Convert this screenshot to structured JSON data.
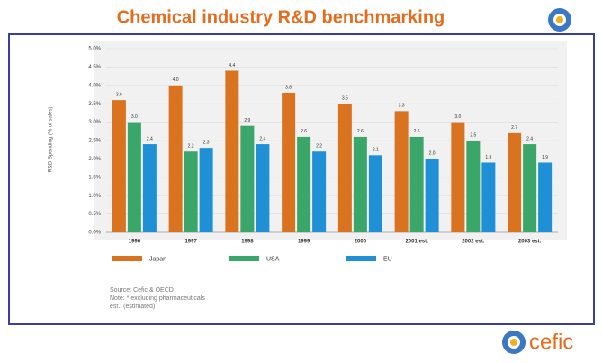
{
  "slide_title": "Chemical industry R&D benchmarking",
  "chart_data": {
    "type": "bar",
    "ylabel": "R&D Spending (% of sales)",
    "categories": [
      "1996",
      "1997",
      "1998",
      "1999",
      "2000",
      "2001 est.",
      "2002 est.",
      "2003 est."
    ],
    "series": [
      {
        "name": "Japan",
        "color": "#d9731f",
        "values": [
          3.6,
          4.0,
          4.4,
          3.8,
          3.5,
          3.3,
          3.0,
          2.7
        ],
        "value_labels": [
          "3.6",
          "4.0",
          "4.4",
          "3.8",
          "3.5",
          "3.3",
          "3.0",
          "2.7"
        ]
      },
      {
        "name": "USA",
        "color": "#3aa66a",
        "values": [
          3.0,
          2.2,
          2.9,
          2.6,
          2.6,
          2.6,
          2.5,
          2.4
        ],
        "value_labels": [
          "3.0",
          "2.2",
          "2.9",
          "2.6",
          "2.6",
          "2.6",
          "2.5",
          "2.4"
        ]
      },
      {
        "name": "EU",
        "color": "#1f8fd6",
        "values": [
          2.4,
          2.3,
          2.4,
          2.2,
          2.1,
          2.0,
          1.9,
          1.9
        ],
        "value_labels": [
          "2.4",
          "2.3",
          "2.4",
          "2.2",
          "2.1",
          "2.0",
          "1.9",
          "1.9"
        ]
      }
    ],
    "ylim": [
      0,
      5
    ],
    "yticks": [
      {
        "value": 0,
        "label": "0.0%"
      },
      {
        "value": 0.5,
        "label": "0.5%"
      },
      {
        "value": 1,
        "label": "1.0%"
      },
      {
        "value": 1.5,
        "label": "1.5%"
      },
      {
        "value": 2,
        "label": "2.0%"
      },
      {
        "value": 2.5,
        "label": "2.5%"
      },
      {
        "value": 3,
        "label": "3.0%"
      },
      {
        "value": 3.5,
        "label": "3.5%"
      },
      {
        "value": 4,
        "label": "4.0%"
      },
      {
        "value": 4.5,
        "label": "4.5%"
      },
      {
        "value": 5,
        "label": "5.0%"
      }
    ],
    "grid": true
  },
  "notes": [
    "Source: Cefic & OECD",
    "Note: * excluding pharmaceuticals",
    "est.: (estimated)"
  ],
  "logo": "cefic"
}
